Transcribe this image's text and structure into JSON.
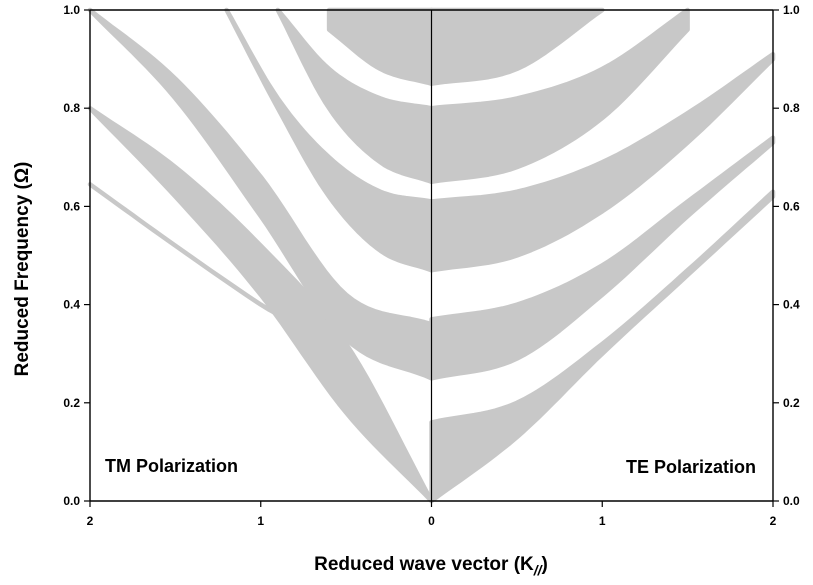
{
  "chart_data": {
    "type": "area",
    "title": "",
    "xlabel": "Reduced wave vector (K",
    "xlabel_subscript": "//",
    "xlabel_close": ")",
    "ylabel": "Reduced Frequency (Ω)",
    "xlim": [
      -2,
      2
    ],
    "ylim": [
      0,
      1
    ],
    "x_ticks": [
      "2",
      "1",
      "0",
      "1",
      "2"
    ],
    "y_ticks": [
      "0.0",
      "0.2",
      "0.4",
      "0.6",
      "0.8",
      "1.0"
    ],
    "grid": false,
    "band_color": "#c8c8c8",
    "annotations": {
      "left": "TM Polarization",
      "right": "TE Polarization"
    },
    "tm_polarization_bands": [
      {
        "k": [
          0,
          0.5,
          1.0,
          1.5,
          2.0
        ],
        "lower": [
          0.0,
          0.29,
          0.4,
          0.52,
          0.645
        ],
        "upper": [
          0.0,
          0.29,
          0.4,
          0.52,
          0.645
        ]
      },
      {
        "k": [
          0,
          0.5,
          1.0,
          1.5,
          2.0
        ],
        "lower": [
          0.0,
          0.18,
          0.42,
          0.62,
          0.8
        ],
        "upper": [
          0.0,
          0.32,
          0.52,
          0.68,
          0.8
        ]
      },
      {
        "k": [
          0,
          0.5,
          1.0,
          1.5,
          2.0
        ],
        "lower": [
          0.25,
          0.33,
          0.58,
          0.82,
          1.0
        ],
        "upper": [
          0.36,
          0.42,
          0.66,
          0.86,
          1.0
        ]
      },
      {
        "k": [
          0,
          0.3,
          0.6,
          0.9,
          1.2
        ],
        "lower": [
          0.47,
          0.51,
          0.62,
          0.8,
          1.0
        ],
        "upper": [
          0.61,
          0.63,
          0.7,
          0.82,
          1.0
        ]
      },
      {
        "k": [
          0,
          0.3,
          0.6,
          0.9
        ],
        "lower": [
          0.65,
          0.69,
          0.8,
          1.0
        ],
        "upper": [
          0.8,
          0.82,
          0.88,
          1.0
        ]
      },
      {
        "k": [
          0,
          0.3,
          0.6
        ],
        "lower": [
          0.85,
          0.88,
          0.96
        ],
        "upper": [
          1.0,
          1.0,
          1.0
        ]
      }
    ],
    "te_polarization_bands": [
      {
        "k": [
          0,
          0.5,
          1.0,
          1.5,
          2.0
        ],
        "lower": [
          0.0,
          0.13,
          0.3,
          0.46,
          0.62
        ],
        "upper": [
          0.16,
          0.2,
          0.32,
          0.47,
          0.63
        ]
      },
      {
        "k": [
          0,
          0.5,
          1.0,
          1.5,
          2.0
        ],
        "lower": [
          0.25,
          0.29,
          0.42,
          0.58,
          0.73
        ],
        "upper": [
          0.37,
          0.4,
          0.48,
          0.61,
          0.74
        ]
      },
      {
        "k": [
          0,
          0.5,
          1.0,
          1.5,
          2.0
        ],
        "lower": [
          0.47,
          0.5,
          0.59,
          0.73,
          0.9
        ],
        "upper": [
          0.61,
          0.63,
          0.69,
          0.79,
          0.91
        ]
      },
      {
        "k": [
          0,
          0.5,
          1.0,
          1.5
        ],
        "lower": [
          0.65,
          0.68,
          0.78,
          0.96
        ],
        "upper": [
          0.8,
          0.82,
          0.88,
          1.0
        ]
      },
      {
        "k": [
          0,
          0.5,
          1.0
        ],
        "lower": [
          0.85,
          0.88,
          1.0
        ],
        "upper": [
          1.0,
          1.0,
          1.0
        ]
      }
    ]
  }
}
